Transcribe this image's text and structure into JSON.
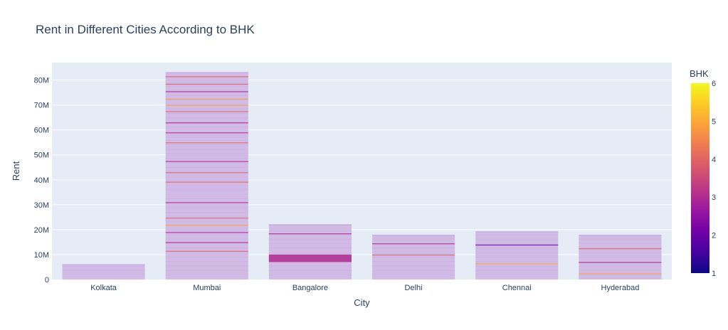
{
  "chart_data": {
    "type": "bar",
    "title": "Rent in Different Cities According to BHK",
    "xlabel": "City",
    "ylabel": "Rent",
    "categories": [
      "Kolkata",
      "Mumbai",
      "Bangalore",
      "Delhi",
      "Chennai",
      "Hyderabad"
    ],
    "values": [
      6000000,
      83000000,
      22000000,
      17800000,
      19200000,
      17800000
    ],
    "ylim": [
      0,
      87000000
    ],
    "y_ticks": [
      0,
      10000000,
      20000000,
      30000000,
      40000000,
      50000000,
      60000000,
      70000000,
      80000000
    ],
    "y_tick_labels": [
      "0",
      "10M",
      "20M",
      "30M",
      "40M",
      "50M",
      "60M",
      "70M",
      "80M"
    ],
    "bar_base_color": "#d3bde6",
    "stacked_segment_highlights": {
      "Kolkata": [],
      "Mumbai": [
        {
          "value": 39200000,
          "bhk": 4
        },
        {
          "value": 24800000,
          "bhk": 4
        },
        {
          "value": 67500000,
          "bhk": 4
        },
        {
          "value": 72500000,
          "bhk": 5
        },
        {
          "value": 78500000,
          "bhk": 4
        },
        {
          "value": 81500000,
          "bhk": 4
        },
        {
          "value": 47500000,
          "bhk": 3
        },
        {
          "value": 43000000,
          "bhk": 4
        },
        {
          "value": 59000000,
          "bhk": 3
        },
        {
          "value": 15000000,
          "bhk": 3
        },
        {
          "value": 19000000,
          "bhk": 3
        },
        {
          "value": 22000000,
          "bhk": 5
        },
        {
          "value": 31000000,
          "bhk": 3
        },
        {
          "value": 55000000,
          "bhk": 4
        },
        {
          "value": 63000000,
          "bhk": 3
        },
        {
          "value": 70000000,
          "bhk": 5
        },
        {
          "value": 75500000,
          "bhk": 3
        },
        {
          "value": 11500000,
          "bhk": 4
        }
      ],
      "Bangalore": [
        {
          "value": 10000000,
          "bhk": 3,
          "height": 3000000
        },
        {
          "value": 18500000,
          "bhk": 3
        }
      ],
      "Delhi": [
        {
          "value": 10000000,
          "bhk": 4
        },
        {
          "value": 14500000,
          "bhk": 3
        }
      ],
      "Chennai": [
        {
          "value": 14000000,
          "bhk": 2
        },
        {
          "value": 6500000,
          "bhk": 5
        }
      ],
      "Hyderabad": [
        {
          "value": 7000000,
          "bhk": 3
        },
        {
          "value": 2500000,
          "bhk": 5
        },
        {
          "value": 12500000,
          "bhk": 4
        }
      ]
    },
    "colorbar": {
      "title": "BHK",
      "min": 1,
      "max": 6,
      "ticks": [
        "1",
        "2",
        "3",
        "4",
        "5",
        "6"
      ],
      "colors": [
        "#0d0887",
        "#46039f",
        "#7201a8",
        "#9c179e",
        "#bd3786",
        "#d8576b",
        "#ed7953",
        "#fb9f3a",
        "#fdca26",
        "#f0f921"
      ]
    },
    "grid": true,
    "plot_bgcolor": "#e5ecf6"
  }
}
